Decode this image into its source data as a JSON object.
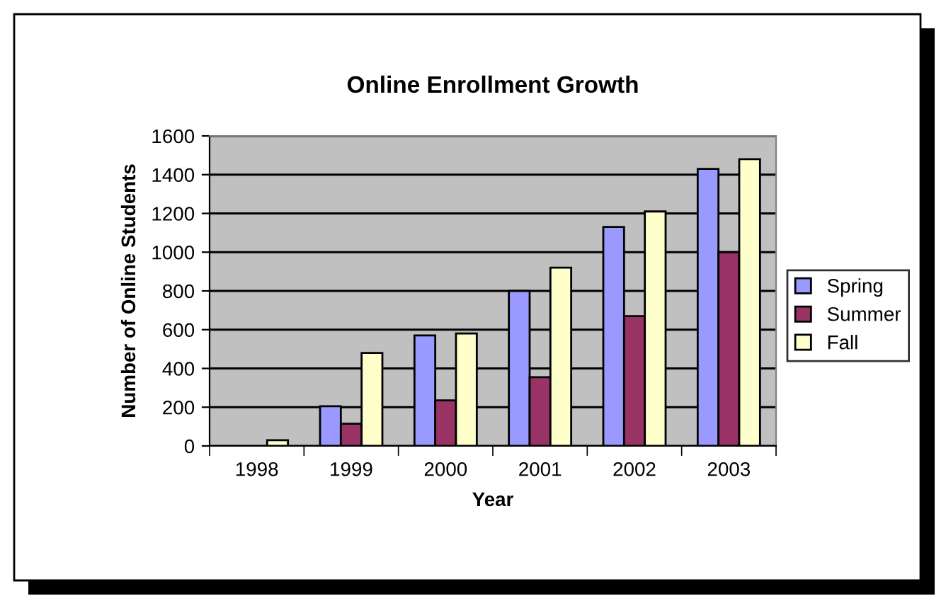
{
  "chart_data": {
    "type": "bar",
    "title": "Online Enrollment Growth",
    "xlabel": "Year",
    "ylabel": "Number of Online Students",
    "categories": [
      "1998",
      "1999",
      "2000",
      "2001",
      "2002",
      "2003"
    ],
    "series": [
      {
        "name": "Spring",
        "color": "#9999ff",
        "values": [
          null,
          205,
          570,
          800,
          1130,
          1430
        ]
      },
      {
        "name": "Summer",
        "color": "#993366",
        "values": [
          null,
          115,
          235,
          355,
          670,
          1000
        ]
      },
      {
        "name": "Fall",
        "color": "#ffffcc",
        "values": [
          30,
          480,
          580,
          920,
          1210,
          1480
        ]
      }
    ],
    "ylim": [
      0,
      1600
    ],
    "yticks": [
      0,
      200,
      400,
      600,
      800,
      1000,
      1200,
      1400,
      1600
    ],
    "grid": "y",
    "legend": "right"
  }
}
